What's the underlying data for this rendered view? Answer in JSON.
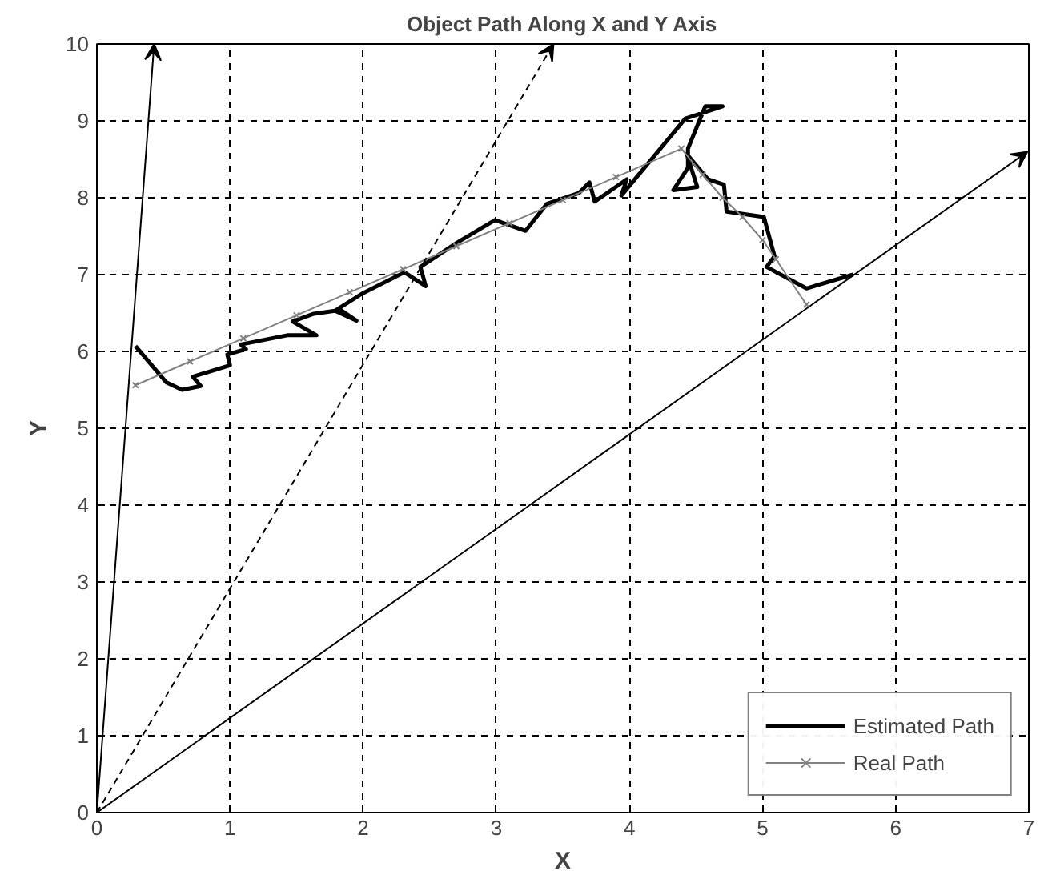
{
  "chart_data": {
    "type": "line",
    "title": "Object Path Along X and Y Axis",
    "xlabel": "X",
    "ylabel": "Y",
    "xlim": [
      0,
      7
    ],
    "ylim": [
      0,
      10
    ],
    "xticks": [
      0,
      1,
      2,
      3,
      4,
      5,
      6,
      7
    ],
    "yticks": [
      0,
      1,
      2,
      3,
      4,
      5,
      6,
      7,
      8,
      9,
      10
    ],
    "grid": true,
    "legend": "bottom right",
    "series": [
      {
        "name": "Estimated Path",
        "color": "#000000",
        "marker": "none",
        "line_style": "solid",
        "x": [
          0.29,
          0.52,
          0.64,
          0.78,
          0.72,
          1.0,
          0.98,
          1.12,
          1.08,
          1.43,
          1.65,
          1.47,
          1.63,
          1.83,
          1.95,
          1.79,
          1.99,
          2.31,
          2.47,
          2.43,
          2.71,
          2.99,
          3.22,
          3.38,
          3.62,
          3.7,
          3.74,
          3.98,
          3.94,
          4.42,
          4.7,
          4.57,
          4.44,
          4.44,
          4.33,
          4.51,
          4.43,
          4.59,
          4.71,
          4.73,
          5.01,
          5.09,
          5.03,
          5.33,
          5.68
        ],
        "values": [
          6.07,
          5.6,
          5.5,
          5.55,
          5.67,
          5.82,
          5.96,
          6.03,
          6.09,
          6.21,
          6.21,
          6.39,
          6.49,
          6.54,
          6.4,
          6.53,
          6.75,
          7.03,
          6.85,
          7.1,
          7.42,
          7.71,
          7.57,
          7.92,
          8.06,
          8.2,
          7.95,
          8.24,
          8.03,
          9.03,
          9.19,
          9.19,
          8.64,
          8.39,
          8.1,
          8.14,
          8.57,
          8.24,
          8.17,
          7.82,
          7.75,
          7.24,
          7.1,
          6.82,
          7.0
        ]
      },
      {
        "name": "Real Path",
        "color": "#808080",
        "marker": "cross",
        "line_style": "solid",
        "x": [
          0.29,
          0.7,
          1.1,
          1.5,
          1.9,
          2.3,
          2.7,
          3.1,
          3.5,
          3.9,
          4.39,
          4.55,
          4.7,
          4.85,
          5.0,
          5.1,
          5.33
        ],
        "values": [
          5.56,
          5.87,
          6.17,
          6.47,
          6.77,
          7.07,
          7.37,
          7.67,
          7.97,
          8.27,
          8.64,
          8.3,
          8.0,
          7.75,
          7.45,
          7.2,
          6.61
        ]
      }
    ]
  }
}
